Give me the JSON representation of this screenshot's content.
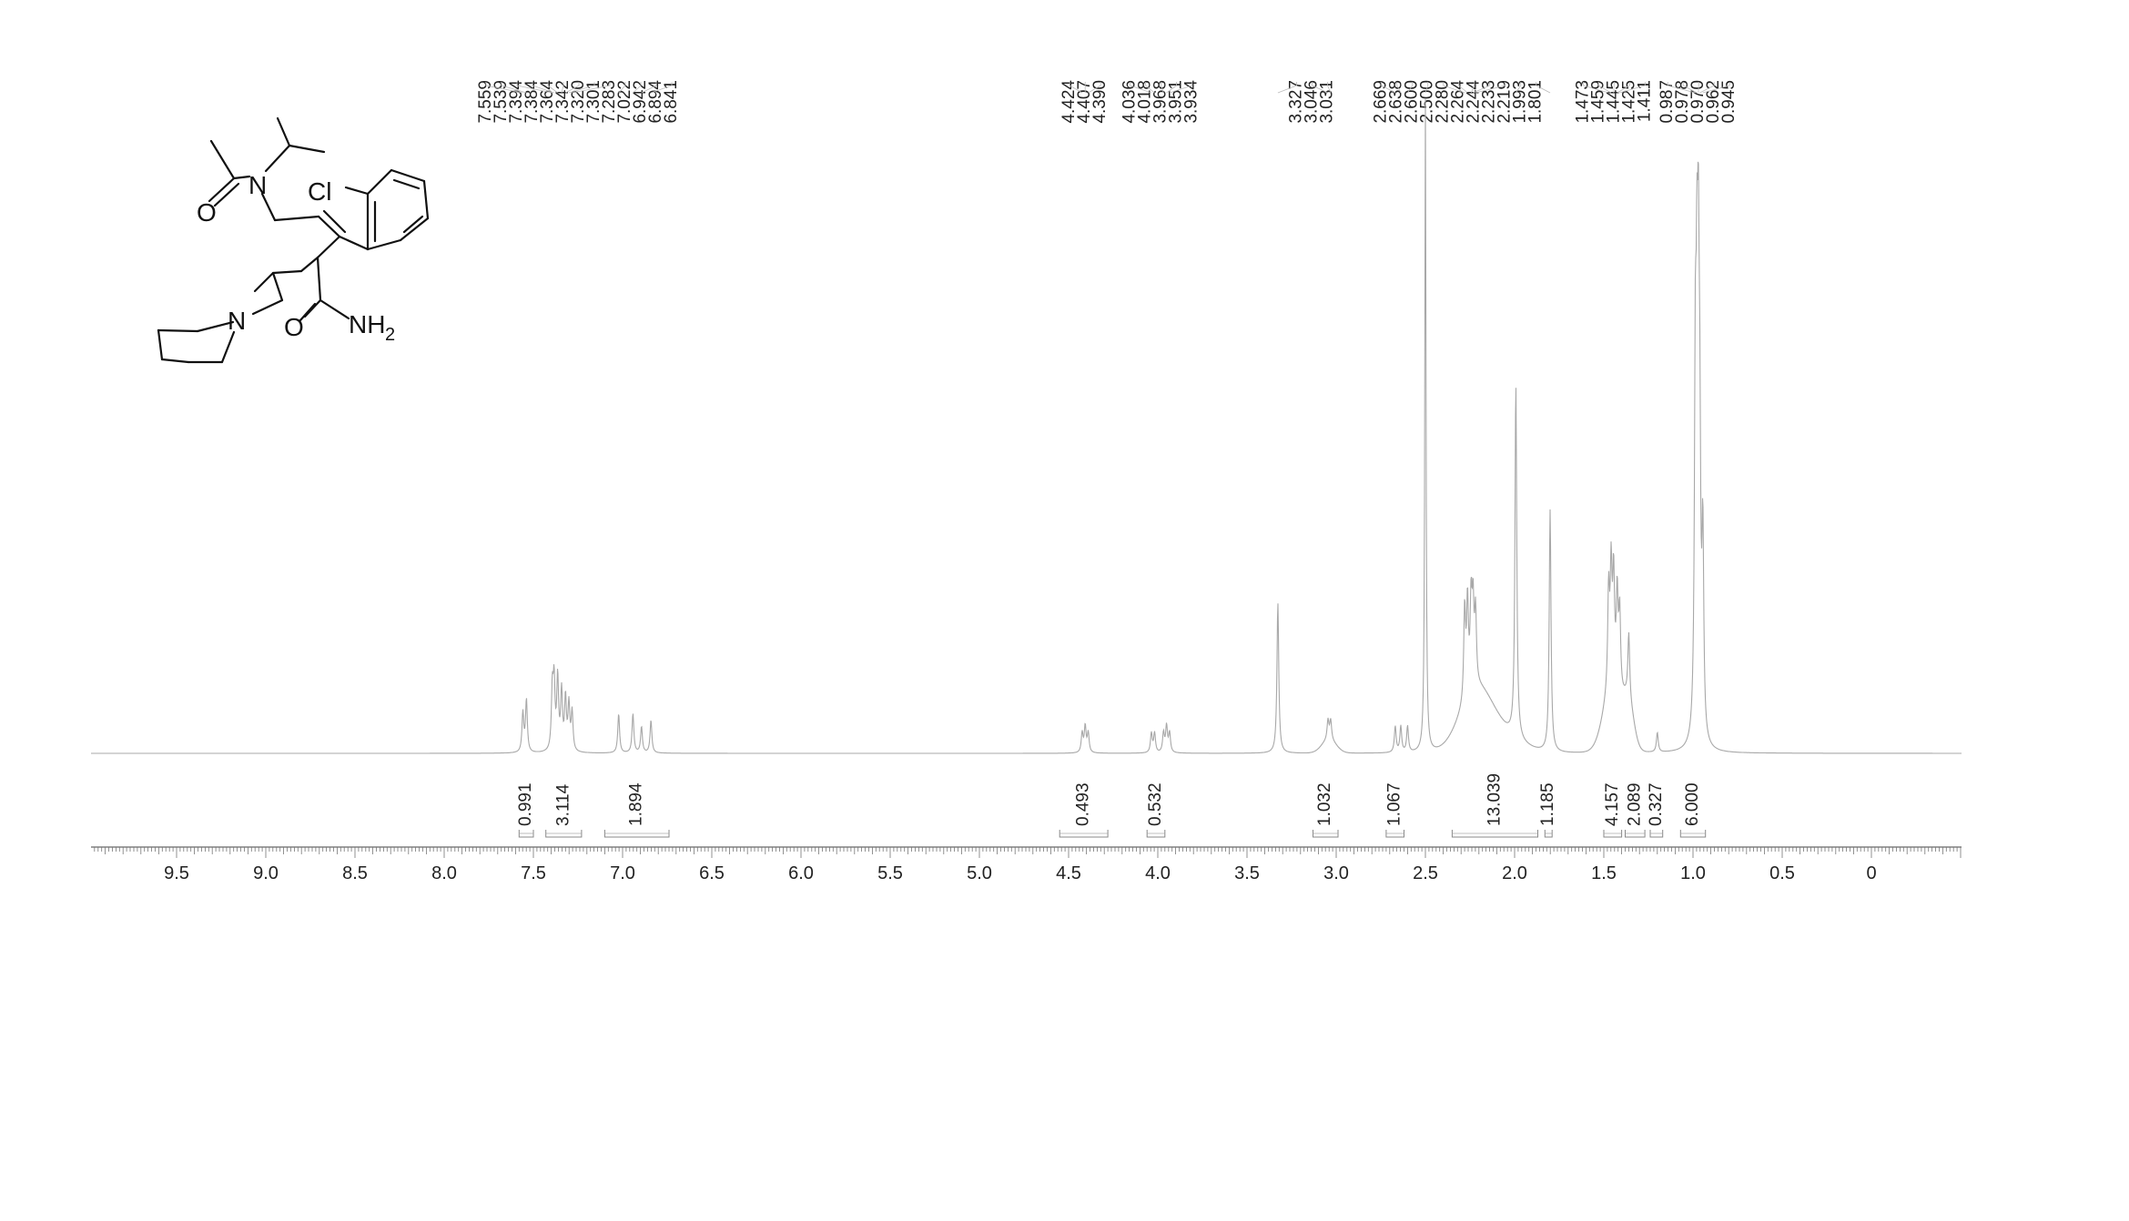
{
  "chart_data": {
    "type": "line",
    "title": "",
    "xlabel": "",
    "ylabel": "",
    "x_reversed": true,
    "xlim": [
      10.0,
      -0.5
    ],
    "x_ticks": [
      "9.5",
      "9.0",
      "8.5",
      "8.0",
      "7.5",
      "7.0",
      "6.5",
      "6.0",
      "5.5",
      "5.0",
      "4.5",
      "4.0",
      "3.5",
      "3.0",
      "2.5",
      "2.0",
      "1.5",
      "1.0",
      "0.5",
      "0"
    ],
    "x_tick_values": [
      9.5,
      9.0,
      8.5,
      8.0,
      7.5,
      7.0,
      6.5,
      6.0,
      5.5,
      5.0,
      4.5,
      4.0,
      3.5,
      3.0,
      2.5,
      2.0,
      1.5,
      1.0,
      0.5,
      0
    ],
    "grid": false,
    "peak_labels": [
      "7.559",
      "7.539",
      "7.394",
      "7.384",
      "7.364",
      "7.342",
      "7.320",
      "7.301",
      "7.283",
      "7.022",
      "6.942",
      "6.894",
      "6.841",
      "4.424",
      "4.407",
      "4.390",
      "4.036",
      "4.018",
      "3.968",
      "3.951",
      "3.934",
      "3.327",
      "3.046",
      "3.031",
      "2.669",
      "2.638",
      "2.600",
      "2.500",
      "2.280",
      "2.264",
      "2.244",
      "2.233",
      "2.219",
      "1.993",
      "1.801",
      "1.473",
      "1.459",
      "1.445",
      "1.425",
      "1.411",
      "0.987",
      "0.978",
      "0.970",
      "0.962",
      "0.945"
    ],
    "integrals": [
      {
        "value": "0.991",
        "from": 7.58,
        "to": 7.5
      },
      {
        "value": "3.114",
        "from": 7.43,
        "to": 7.23
      },
      {
        "value": "1.894",
        "from": 7.1,
        "to": 6.74
      },
      {
        "value": "0.493",
        "from": 4.55,
        "to": 4.28
      },
      {
        "value": "0.532",
        "from": 4.06,
        "to": 3.96
      },
      {
        "value": "1.032",
        "from": 3.13,
        "to": 2.99
      },
      {
        "value": "1.067",
        "from": 2.72,
        "to": 2.62
      },
      {
        "value": "13.039",
        "from": 2.35,
        "to": 1.87
      },
      {
        "value": "1.185",
        "from": 1.83,
        "to": 1.79
      },
      {
        "value": "4.157",
        "from": 1.5,
        "to": 1.4
      },
      {
        "value": "2.089",
        "from": 1.38,
        "to": 1.27
      },
      {
        "value": "0.327",
        "from": 1.24,
        "to": 1.17
      },
      {
        "value": "6.000",
        "from": 1.07,
        "to": 0.93
      }
    ],
    "peaks": [
      {
        "ppm": 7.559,
        "h": 0.06
      },
      {
        "ppm": 7.539,
        "h": 0.08
      },
      {
        "ppm": 7.394,
        "h": 0.09
      },
      {
        "ppm": 7.384,
        "h": 0.1
      },
      {
        "ppm": 7.364,
        "h": 0.11
      },
      {
        "ppm": 7.342,
        "h": 0.09
      },
      {
        "ppm": 7.32,
        "h": 0.08
      },
      {
        "ppm": 7.301,
        "h": 0.07
      },
      {
        "ppm": 7.283,
        "h": 0.06
      },
      {
        "ppm": 7.022,
        "h": 0.06
      },
      {
        "ppm": 6.942,
        "h": 0.06
      },
      {
        "ppm": 6.894,
        "h": 0.04
      },
      {
        "ppm": 6.841,
        "h": 0.05
      },
      {
        "ppm": 4.424,
        "h": 0.03
      },
      {
        "ppm": 4.407,
        "h": 0.04
      },
      {
        "ppm": 4.39,
        "h": 0.03
      },
      {
        "ppm": 4.036,
        "h": 0.03
      },
      {
        "ppm": 4.018,
        "h": 0.03
      },
      {
        "ppm": 3.968,
        "h": 0.03
      },
      {
        "ppm": 3.951,
        "h": 0.04
      },
      {
        "ppm": 3.934,
        "h": 0.03
      },
      {
        "ppm": 3.327,
        "h": 0.23
      },
      {
        "ppm": 3.046,
        "h": 0.03
      },
      {
        "ppm": 3.031,
        "h": 0.03
      },
      {
        "ppm": 2.669,
        "h": 0.04
      },
      {
        "ppm": 2.638,
        "h": 0.04
      },
      {
        "ppm": 2.6,
        "h": 0.04
      },
      {
        "ppm": 2.5,
        "h": 1.0
      },
      {
        "ppm": 2.28,
        "h": 0.14
      },
      {
        "ppm": 2.264,
        "h": 0.14
      },
      {
        "ppm": 2.244,
        "h": 0.13
      },
      {
        "ppm": 2.233,
        "h": 0.12
      },
      {
        "ppm": 2.219,
        "h": 0.11
      },
      {
        "ppm": 1.993,
        "h": 0.54
      },
      {
        "ppm": 1.801,
        "h": 0.37
      },
      {
        "ppm": 1.473,
        "h": 0.15
      },
      {
        "ppm": 1.459,
        "h": 0.17
      },
      {
        "ppm": 1.445,
        "h": 0.16
      },
      {
        "ppm": 1.425,
        "h": 0.14
      },
      {
        "ppm": 1.411,
        "h": 0.12
      },
      {
        "ppm": 1.36,
        "h": 0.1
      },
      {
        "ppm": 1.2,
        "h": 0.03
      },
      {
        "ppm": 0.987,
        "h": 0.5
      },
      {
        "ppm": 0.978,
        "h": 0.48
      },
      {
        "ppm": 0.97,
        "h": 0.54
      },
      {
        "ppm": 0.962,
        "h": 0.35
      },
      {
        "ppm": 0.945,
        "h": 0.3
      }
    ]
  },
  "structure": {
    "atom_labels": {
      "oxygen_1": "O",
      "nitrogen_amide": "N",
      "chlorine": "Cl",
      "nitrogen_piperidine": "N",
      "oxygen_2": "O",
      "amine_nh": "NH",
      "amine_subscript": "2"
    }
  }
}
